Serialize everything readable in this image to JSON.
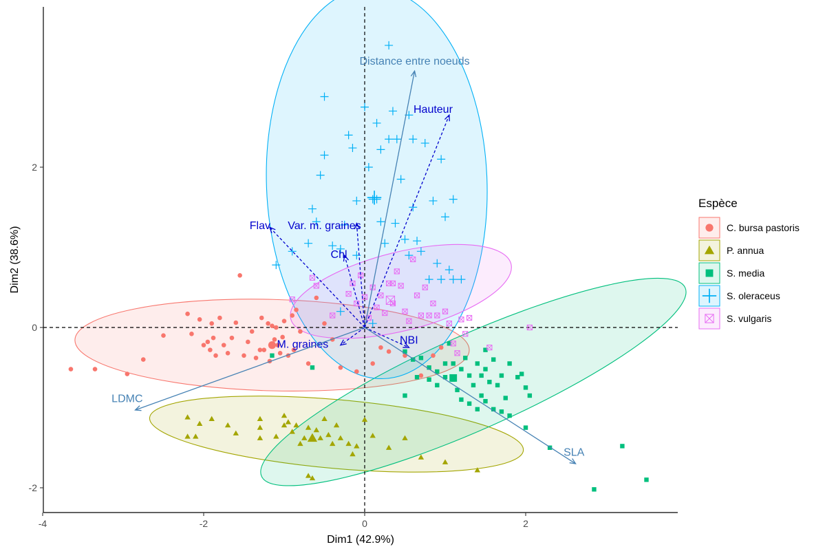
{
  "chart_data": {
    "type": "scatter",
    "xlabel": "Dim1 (42.9%)",
    "ylabel": "Dim2 (38.6%)",
    "xlim": [
      -4.0,
      3.9
    ],
    "ylim": [
      -2.3,
      4.0
    ],
    "x_ticks": [
      -4,
      -2,
      0,
      2
    ],
    "y_ticks": [
      -2,
      0,
      2
    ],
    "x_tick_labels": [
      "-4",
      "-2",
      "0",
      "2"
    ],
    "y_tick_labels": [
      "-2",
      "0",
      "2"
    ],
    "grid": false,
    "reference_lines": {
      "x": 0,
      "y": 0,
      "style": "dashed"
    },
    "legend": {
      "title": "Espèce",
      "placement": "right",
      "entries": [
        "C. bursa pastoris",
        "P. annua",
        "S. media",
        "S. oleraceus",
        "S. vulgaris"
      ]
    },
    "series": [
      {
        "name": "C. bursa pastoris",
        "color": "#F8766D",
        "marker": "circle",
        "centroid": [
          -1.15,
          -0.22
        ],
        "ellipse": {
          "center": [
            -1.15,
            -0.22
          ],
          "rx": 2.45,
          "ry": 0.57,
          "rotation_deg": 1.5
        },
        "points": [
          [
            -3.65,
            -0.52
          ],
          [
            -3.35,
            -0.52
          ],
          [
            -2.95,
            -0.58
          ],
          [
            -2.75,
            -0.4
          ],
          [
            -2.5,
            -0.1
          ],
          [
            -2.2,
            0.17
          ],
          [
            -2.15,
            -0.08
          ],
          [
            -2.05,
            0.1
          ],
          [
            -2.0,
            -0.22
          ],
          [
            -1.95,
            -0.18
          ],
          [
            -1.92,
            -0.28
          ],
          [
            -1.9,
            0.05
          ],
          [
            -1.88,
            -0.13
          ],
          [
            -1.85,
            -0.35
          ],
          [
            -1.8,
            0.12
          ],
          [
            -1.75,
            -0.22
          ],
          [
            -1.7,
            -0.32
          ],
          [
            -1.65,
            -0.13
          ],
          [
            -1.6,
            0.06
          ],
          [
            -1.55,
            0.65
          ],
          [
            -1.5,
            -0.35
          ],
          [
            -1.45,
            -0.18
          ],
          [
            -1.4,
            -0.05
          ],
          [
            -1.35,
            -0.38
          ],
          [
            -1.3,
            -0.28
          ],
          [
            -1.28,
            0.12
          ],
          [
            -1.25,
            -0.28
          ],
          [
            -1.2,
            0.05
          ],
          [
            -1.18,
            -0.42
          ],
          [
            -1.15,
            0.02
          ],
          [
            -1.12,
            -0.15
          ],
          [
            -1.1,
            0.0
          ],
          [
            -1.08,
            -0.22
          ],
          [
            -1.05,
            -0.32
          ],
          [
            -1.02,
            -0.12
          ],
          [
            -1.0,
            0.08
          ],
          [
            -0.95,
            -0.35
          ],
          [
            -0.9,
            0.15
          ],
          [
            -0.88,
            -0.28
          ],
          [
            -0.85,
            0.22
          ],
          [
            -0.8,
            -0.05
          ],
          [
            -0.7,
            -0.45
          ],
          [
            -0.6,
            0.37
          ],
          [
            -0.5,
            0.05
          ],
          [
            -0.4,
            -0.15
          ],
          [
            -0.3,
            -0.5
          ],
          [
            -0.1,
            -0.55
          ],
          [
            0.1,
            -0.45
          ],
          [
            0.2,
            -0.25
          ],
          [
            0.3,
            -0.3
          ],
          [
            0.5,
            -0.35
          ],
          [
            0.7,
            -0.6
          ],
          [
            0.85,
            -0.35
          ],
          [
            0.95,
            -0.25
          ]
        ]
      },
      {
        "name": "P. annua",
        "color": "#A3A500",
        "marker": "triangle",
        "centroid": [
          -0.65,
          -1.38
        ],
        "ellipse": {
          "center": [
            -0.35,
            -1.33
          ],
          "rx": 2.33,
          "ry": 0.43,
          "rotation_deg": 5
        },
        "points": [
          [
            -2.2,
            -1.12
          ],
          [
            -2.2,
            -1.36
          ],
          [
            -2.1,
            -1.36
          ],
          [
            -2.05,
            -1.2
          ],
          [
            -1.9,
            -1.14
          ],
          [
            -1.7,
            -1.22
          ],
          [
            -1.6,
            -1.32
          ],
          [
            -1.3,
            -1.14
          ],
          [
            -1.3,
            -1.25
          ],
          [
            -1.3,
            -1.38
          ],
          [
            -1.1,
            -1.36
          ],
          [
            -1.0,
            -1.1
          ],
          [
            -1.0,
            -1.22
          ],
          [
            -0.95,
            -1.18
          ],
          [
            -0.9,
            -1.3
          ],
          [
            -0.85,
            -1.22
          ],
          [
            -0.8,
            -1.45
          ],
          [
            -0.75,
            -1.38
          ],
          [
            -0.7,
            -1.25
          ],
          [
            -0.7,
            -1.85
          ],
          [
            -0.65,
            -1.88
          ],
          [
            -0.6,
            -1.28
          ],
          [
            -0.55,
            -1.38
          ],
          [
            -0.5,
            -1.14
          ],
          [
            -0.45,
            -1.34
          ],
          [
            -0.4,
            -1.45
          ],
          [
            -0.35,
            -1.22
          ],
          [
            -0.3,
            -1.38
          ],
          [
            -0.2,
            -1.45
          ],
          [
            -0.15,
            -1.58
          ],
          [
            -0.1,
            -1.48
          ],
          [
            0.0,
            -1.15
          ],
          [
            0.1,
            -1.35
          ],
          [
            0.3,
            -1.5
          ],
          [
            0.5,
            -1.38
          ],
          [
            0.7,
            -1.62
          ],
          [
            1.0,
            -1.68
          ],
          [
            1.4,
            -1.78
          ]
        ]
      },
      {
        "name": "S. media",
        "color": "#00BF7D",
        "marker": "square",
        "centroid": [
          1.1,
          -0.63
        ],
        "ellipse": {
          "center": [
            1.35,
            -0.68
          ],
          "rx": 2.88,
          "ry": 0.59,
          "rotation_deg": -24
        },
        "points": [
          [
            -1.15,
            -0.35
          ],
          [
            -0.65,
            -0.5
          ],
          [
            0.5,
            -0.3
          ],
          [
            0.5,
            -0.85
          ],
          [
            0.6,
            -0.4
          ],
          [
            0.65,
            -0.62
          ],
          [
            0.7,
            -0.38
          ],
          [
            0.8,
            -0.5
          ],
          [
            0.8,
            -0.65
          ],
          [
            0.9,
            -0.55
          ],
          [
            0.9,
            -0.72
          ],
          [
            1.0,
            -0.45
          ],
          [
            1.0,
            -0.62
          ],
          [
            1.05,
            -0.2
          ],
          [
            1.1,
            -0.45
          ],
          [
            1.1,
            -0.65
          ],
          [
            1.15,
            -0.78
          ],
          [
            1.2,
            -0.52
          ],
          [
            1.2,
            -0.9
          ],
          [
            1.25,
            -0.38
          ],
          [
            1.3,
            -0.6
          ],
          [
            1.3,
            -0.95
          ],
          [
            1.35,
            -0.72
          ],
          [
            1.4,
            -0.45
          ],
          [
            1.4,
            -1.02
          ],
          [
            1.45,
            -0.6
          ],
          [
            1.45,
            -0.85
          ],
          [
            1.5,
            -0.28
          ],
          [
            1.5,
            -0.52
          ],
          [
            1.5,
            -0.92
          ],
          [
            1.55,
            -0.68
          ],
          [
            1.6,
            -0.4
          ],
          [
            1.6,
            -1.02
          ],
          [
            1.65,
            -0.72
          ],
          [
            1.7,
            -0.6
          ],
          [
            1.7,
            -1.05
          ],
          [
            1.75,
            -0.88
          ],
          [
            1.8,
            -0.45
          ],
          [
            1.8,
            -1.1
          ],
          [
            1.9,
            -0.62
          ],
          [
            1.95,
            -0.58
          ],
          [
            2.0,
            -0.75
          ],
          [
            2.0,
            -1.25
          ],
          [
            2.05,
            -0.85
          ],
          [
            2.3,
            -1.5
          ],
          [
            2.85,
            -2.02
          ],
          [
            3.2,
            -1.48
          ],
          [
            3.5,
            -1.9
          ]
        ]
      },
      {
        "name": "S. oleraceus",
        "color": "#00B0F6",
        "marker": "plus",
        "centroid": [
          0.12,
          1.62
        ],
        "ellipse": {
          "center": [
            0.15,
            1.8
          ],
          "rx": 1.37,
          "ry": 2.44,
          "rotation_deg": -2
        },
        "points": [
          [
            -1.1,
            0.78
          ],
          [
            -0.9,
            0.95
          ],
          [
            -0.7,
            1.05
          ],
          [
            -0.65,
            1.48
          ],
          [
            -0.6,
            1.32
          ],
          [
            -0.55,
            1.9
          ],
          [
            -0.5,
            2.15
          ],
          [
            -0.5,
            2.88
          ],
          [
            -0.4,
            1.02
          ],
          [
            -0.3,
            0.98
          ],
          [
            -0.25,
            1.28
          ],
          [
            -0.2,
            2.4
          ],
          [
            -0.15,
            2.24
          ],
          [
            -0.1,
            1.58
          ],
          [
            -0.1,
            0.9
          ],
          [
            0.0,
            2.75
          ],
          [
            0.05,
            2.0
          ],
          [
            0.1,
            1.6
          ],
          [
            0.15,
            2.55
          ],
          [
            0.15,
            1.6
          ],
          [
            0.2,
            1.32
          ],
          [
            0.2,
            2.22
          ],
          [
            0.25,
            1.05
          ],
          [
            0.3,
            3.52
          ],
          [
            0.3,
            2.35
          ],
          [
            0.35,
            2.7
          ],
          [
            0.38,
            1.3
          ],
          [
            0.4,
            2.35
          ],
          [
            0.45,
            1.85
          ],
          [
            0.5,
            1.1
          ],
          [
            0.55,
            2.65
          ],
          [
            0.6,
            2.35
          ],
          [
            0.6,
            1.5
          ],
          [
            0.65,
            1.08
          ],
          [
            0.7,
            0.95
          ],
          [
            0.75,
            2.3
          ],
          [
            0.8,
            0.6
          ],
          [
            0.85,
            1.58
          ],
          [
            0.9,
            0.8
          ],
          [
            0.95,
            2.1
          ],
          [
            1.0,
            1.38
          ],
          [
            1.05,
            0.72
          ],
          [
            1.1,
            0.6
          ],
          [
            1.1,
            1.6
          ],
          [
            1.2,
            0.6
          ],
          [
            0.55,
            0.9
          ],
          [
            0.1,
            0.05
          ],
          [
            -0.3,
            0.2
          ],
          [
            0.95,
            0.6
          ]
        ]
      },
      {
        "name": "S. vulgaris",
        "color": "#E76BF3",
        "marker": "square-cross",
        "centroid": [
          0.32,
          0.34
        ],
        "ellipse": {
          "center": [
            0.45,
            0.45
          ],
          "rx": 1.41,
          "ry": 0.49,
          "rotation_deg": -14
        },
        "points": [
          [
            -0.9,
            0.35
          ],
          [
            -0.65,
            0.62
          ],
          [
            -0.6,
            0.52
          ],
          [
            -0.4,
            0.15
          ],
          [
            -0.2,
            0.42
          ],
          [
            -0.15,
            0.55
          ],
          [
            -0.1,
            0.3
          ],
          [
            -0.05,
            0.65
          ],
          [
            0.0,
            0.38
          ],
          [
            0.05,
            0.12
          ],
          [
            0.1,
            0.5
          ],
          [
            0.15,
            0.25
          ],
          [
            0.2,
            0.4
          ],
          [
            0.25,
            0.18
          ],
          [
            0.3,
            0.55
          ],
          [
            0.35,
            0.3
          ],
          [
            0.4,
            0.7
          ],
          [
            0.45,
            0.52
          ],
          [
            0.5,
            0.2
          ],
          [
            0.55,
            0.08
          ],
          [
            0.6,
            0.85
          ],
          [
            0.65,
            0.4
          ],
          [
            0.7,
            0.15
          ],
          [
            0.75,
            0.5
          ],
          [
            0.8,
            0.15
          ],
          [
            0.85,
            0.3
          ],
          [
            0.9,
            0.15
          ],
          [
            1.0,
            0.2
          ],
          [
            1.05,
            0.05
          ],
          [
            1.1,
            -0.2
          ],
          [
            1.15,
            -0.32
          ],
          [
            1.2,
            0.1
          ],
          [
            1.25,
            -0.08
          ],
          [
            1.3,
            0.12
          ],
          [
            1.55,
            -0.25
          ],
          [
            2.05,
            0.0
          ],
          [
            0.35,
            0.55
          ]
        ]
      }
    ],
    "variables": [
      {
        "name": "Distance entre noeuds",
        "x": 0.62,
        "y": 3.2,
        "color": "#4682B4",
        "style": "solid",
        "label_x": 0.62,
        "label_y": 3.33
      },
      {
        "name": "Hauteur",
        "x": 1.05,
        "y": 2.65,
        "color": "#0000CD",
        "style": "dashed",
        "label_x": 0.85,
        "label_y": 2.73
      },
      {
        "name": "Flav",
        "x": -1.18,
        "y": 1.25,
        "color": "#0000CD",
        "style": "dashed",
        "label_x": -1.3,
        "label_y": 1.28
      },
      {
        "name": "Var. m. graines",
        "x": -0.1,
        "y": 1.3,
        "color": "#0000CD",
        "style": "dashed",
        "label_x": -0.5,
        "label_y": 1.28
      },
      {
        "name": "Chl",
        "x": -0.25,
        "y": 0.9,
        "color": "#0000CD",
        "style": "dashed",
        "label_x": -0.32,
        "label_y": 0.92
      },
      {
        "name": "M. graines",
        "x": -0.3,
        "y": -0.22,
        "color": "#0000CD",
        "style": "dashed",
        "label_x": -0.77,
        "label_y": -0.2
      },
      {
        "name": "NBI",
        "x": 0.55,
        "y": -0.25,
        "color": "#0000CD",
        "style": "dashed",
        "label_x": 0.55,
        "label_y": -0.15
      },
      {
        "name": "LDMC",
        "x": -2.85,
        "y": -1.03,
        "color": "#4682B4",
        "style": "solid",
        "label_x": -2.95,
        "label_y": -0.88
      },
      {
        "name": "SLA",
        "x": 2.62,
        "y": -1.7,
        "color": "#4682B4",
        "style": "solid",
        "label_x": 2.6,
        "label_y": -1.55
      }
    ]
  }
}
